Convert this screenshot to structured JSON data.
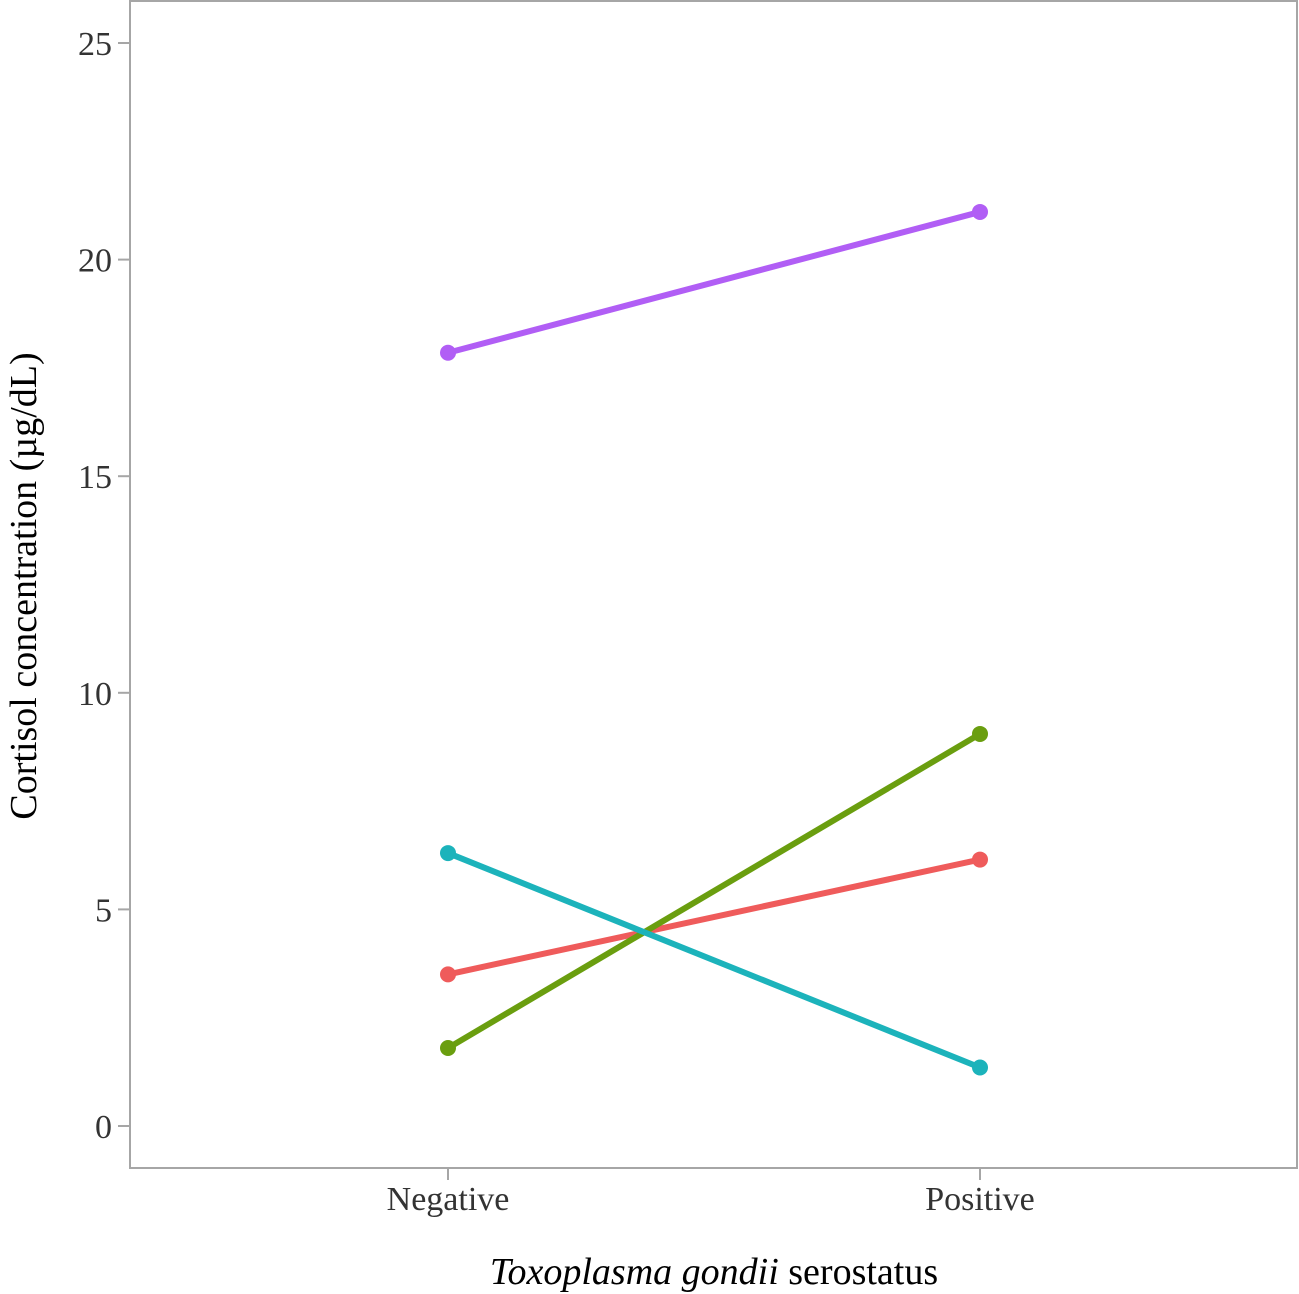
{
  "chart_data": {
    "type": "line",
    "title": "",
    "xlabel_italic": "Toxoplasma gondii",
    "xlabel_rest": "serostatus",
    "ylabel": "Cortisol concentration (µg/dL)",
    "categories": [
      "Negative",
      "Positive"
    ],
    "ylim": [
      -1,
      26
    ],
    "yticks": [
      0,
      5,
      10,
      15,
      20,
      25
    ],
    "grid": false,
    "legend": "none",
    "series": [
      {
        "name": "group-purple",
        "color": "#b15ef5",
        "values": [
          17.85,
          21.1
        ]
      },
      {
        "name": "group-red",
        "color": "#ef5b5b",
        "values": [
          3.5,
          6.15
        ]
      },
      {
        "name": "group-green",
        "color": "#6a9e0f",
        "values": [
          1.8,
          9.05
        ]
      },
      {
        "name": "group-teal",
        "color": "#1cb3bb",
        "values": [
          6.3,
          1.35
        ]
      }
    ]
  }
}
